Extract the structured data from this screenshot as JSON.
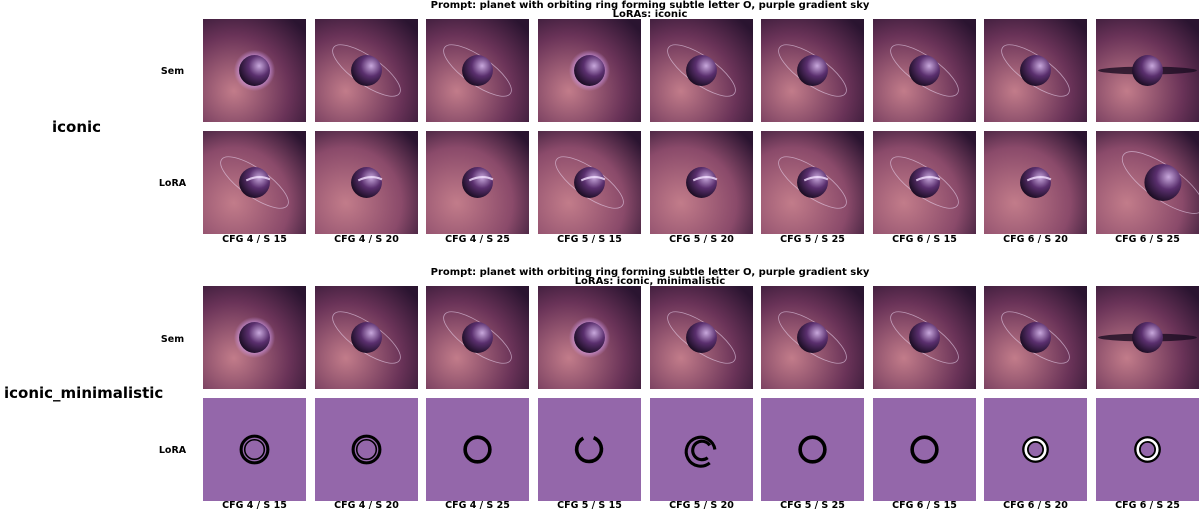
{
  "columns": [
    "CFG 4 / S 15",
    "CFG 4 / S 20",
    "CFG 4 / S 25",
    "CFG 5 / S 15",
    "CFG 5 / S 20",
    "CFG 5 / S 25",
    "CFG 6 / S 15",
    "CFG 6 / S 20",
    "CFG 6 / S 25"
  ],
  "groups": [
    {
      "name": "iconic",
      "prompt": "Prompt: planet with orbiting ring forming subtle letter O, purple gradient sky",
      "loras": "LoRAs: iconic",
      "rows": [
        {
          "label": "Sem",
          "style": "space-planet",
          "background": "#6a3358",
          "tiles": [
            "sem-glow",
            "sem-ring",
            "sem-ring",
            "sem-glow",
            "sem-ring",
            "sem-ring",
            "sem-ring",
            "sem-ring",
            "sem-flatring"
          ]
        },
        {
          "label": "LoRA",
          "style": "space-planet",
          "background": "#8a4a6a",
          "tiles": [
            "lora-ring",
            "lora-plain",
            "lora-plain",
            "lora-ring",
            "lora-plain",
            "lora-ring",
            "lora-ring",
            "lora-plain",
            "lora-large"
          ]
        }
      ]
    },
    {
      "name": "iconic_minimalistic",
      "prompt": "Prompt: planet with orbiting ring forming subtle letter O, purple gradient sky",
      "loras": "LoRAs: iconic, minimalistic",
      "rows": [
        {
          "label": "Sem",
          "style": "space-planet",
          "background": "#6a3358",
          "tiles": [
            "sem-glow",
            "sem-ring",
            "sem-ring",
            "sem-glow",
            "sem-ring",
            "sem-ring",
            "sem-ring",
            "sem-ring",
            "sem-flatring"
          ]
        },
        {
          "label": "LoRA",
          "style": "flat-ring",
          "background": "#9467aa",
          "tiles": [
            "ring-double",
            "ring-double",
            "ring-thick",
            "ring-open",
            "ring-spiral",
            "ring-thick",
            "ring-thick",
            "ring-white",
            "ring-white"
          ]
        }
      ]
    }
  ]
}
